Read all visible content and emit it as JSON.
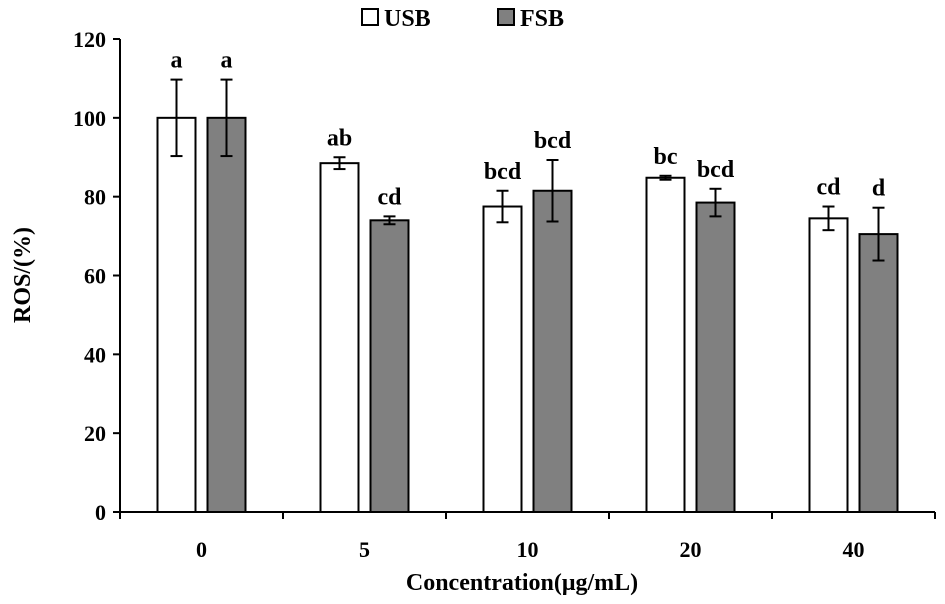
{
  "chart_data": {
    "type": "bar",
    "title": "",
    "xlabel": "Concentration(μg/mL)",
    "ylabel": "ROS/(%)",
    "ylim": [
      0,
      120
    ],
    "yticks": [
      0,
      20,
      40,
      60,
      80,
      100,
      120
    ],
    "categories": [
      "0",
      "5",
      "10",
      "20",
      "40"
    ],
    "legend_position": "top-center",
    "grid": false,
    "series": [
      {
        "name": "USB",
        "color": "#ffffff",
        "values": [
          100,
          88.5,
          77.5,
          84.8,
          74.5
        ],
        "errors": [
          9.7,
          1.5,
          4.0,
          0.5,
          3.0
        ],
        "labels": [
          "a",
          "ab",
          "bcd",
          "bc",
          "cd"
        ]
      },
      {
        "name": "FSB",
        "color": "#808080",
        "values": [
          100,
          74,
          81.5,
          78.5,
          70.5
        ],
        "errors": [
          9.7,
          1.0,
          7.8,
          3.5,
          6.7
        ],
        "labels": [
          "a",
          "cd",
          "bcd",
          "bcd",
          "d"
        ]
      }
    ]
  }
}
